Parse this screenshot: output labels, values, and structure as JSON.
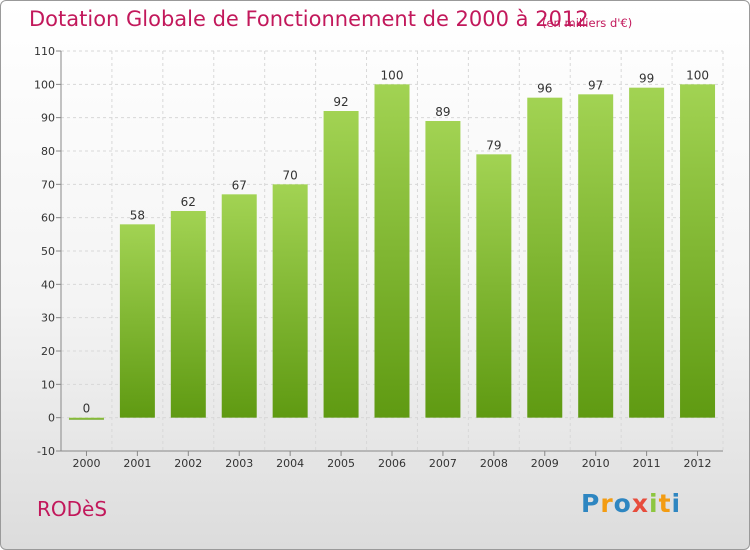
{
  "chart_data": {
    "type": "bar",
    "title": "Dotation Globale de Fonctionnement de 2000 à 2012",
    "subtitle": "(en milliers d'€)",
    "categories": [
      "2000",
      "2001",
      "2002",
      "2003",
      "2004",
      "2005",
      "2006",
      "2007",
      "2008",
      "2009",
      "2010",
      "2011",
      "2012"
    ],
    "values": [
      0,
      58,
      62,
      67,
      70,
      92,
      100,
      89,
      79,
      96,
      97,
      99,
      100
    ],
    "ylim": [
      -10,
      110
    ],
    "yticks": [
      -10,
      0,
      10,
      20,
      30,
      40,
      50,
      60,
      70,
      80,
      90,
      100,
      110
    ],
    "xlabel": "",
    "ylabel": "",
    "grid": true,
    "colors": {
      "bar_top": "#a2d353",
      "bar_bottom": "#5f9a12",
      "grid": "#d8d8d8",
      "axis": "#888888"
    }
  },
  "footer": {
    "commune": "RODèS",
    "logo_letters": [
      "P",
      "r",
      "o",
      "x",
      "i",
      "t",
      "i"
    ]
  }
}
